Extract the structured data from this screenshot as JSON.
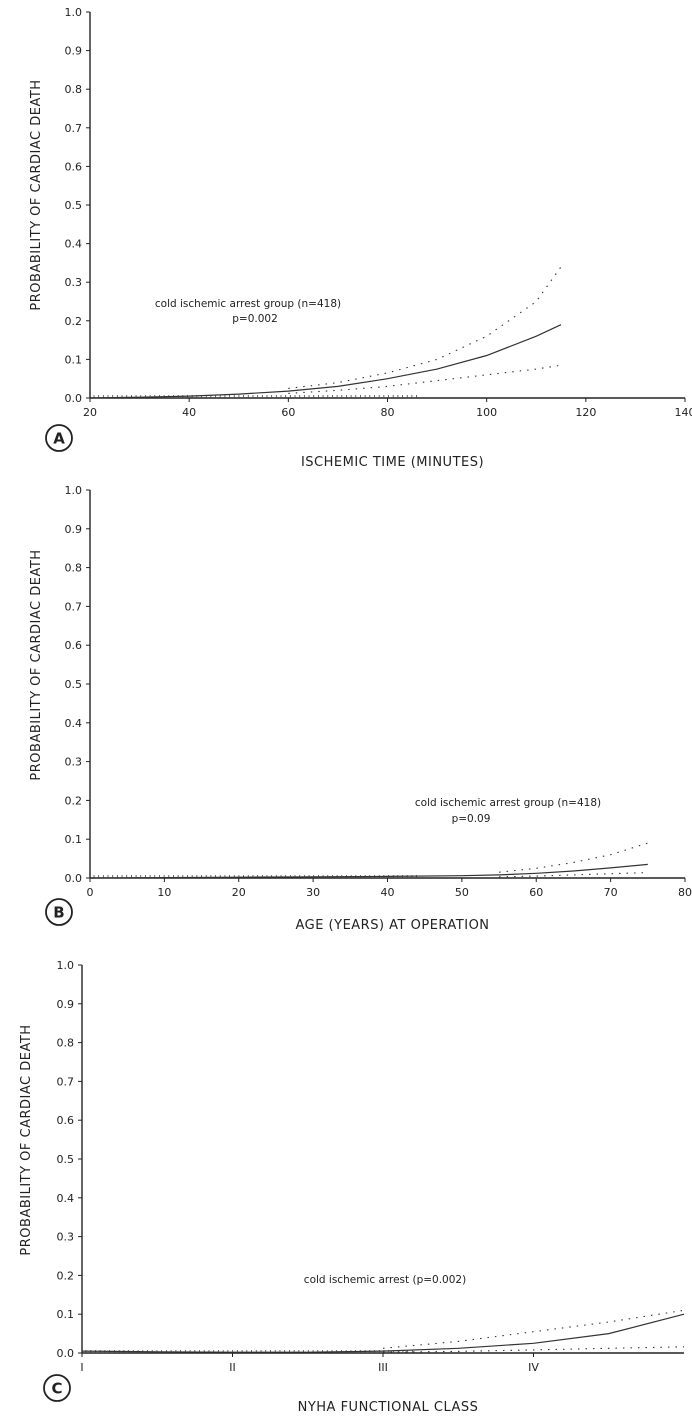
{
  "chart_data": [
    {
      "type": "line",
      "panel_label": "A",
      "xlabel": "ISCHEMIC TIME (MINUTES)",
      "ylabel": "PROBABILITY OF CARDIAC DEATH",
      "xlim": [
        20,
        140
      ],
      "ylim": [
        0,
        1.0
      ],
      "x_ticks": [
        20,
        40,
        60,
        80,
        100,
        120,
        140
      ],
      "x_tick_labels": [
        "20",
        "40",
        "60",
        "80",
        "100",
        "120",
        "140"
      ],
      "y_ticks": [
        0.0,
        0.1,
        0.2,
        0.3,
        0.4,
        0.5,
        0.6,
        0.7,
        0.8,
        0.9,
        1.0
      ],
      "y_tick_labels": [
        "0.0",
        "0.1",
        "0.2",
        "0.3",
        "0.4",
        "0.5",
        "0.6",
        "0.7",
        "0.8",
        "0.9",
        "1.0"
      ],
      "annotations": [
        "cold ischemic arrest group (n=418)",
        "p=0.002"
      ],
      "series": [
        {
          "style": "solid",
          "x": [
            20,
            30,
            40,
            50,
            60,
            70,
            80,
            90,
            100,
            110,
            115
          ],
          "y": [
            0.0,
            0.002,
            0.005,
            0.01,
            0.018,
            0.03,
            0.05,
            0.075,
            0.11,
            0.16,
            0.19
          ]
        },
        {
          "style": "dotted",
          "x": [
            60,
            70,
            80,
            90,
            100,
            110,
            115
          ],
          "y": [
            0.025,
            0.04,
            0.065,
            0.1,
            0.16,
            0.25,
            0.34
          ]
        },
        {
          "style": "dotted",
          "x": [
            60,
            70,
            80,
            90,
            100,
            110,
            115
          ],
          "y": [
            0.012,
            0.02,
            0.03,
            0.045,
            0.06,
            0.075,
            0.085
          ]
        }
      ]
    },
    {
      "type": "line",
      "panel_label": "B",
      "xlabel": "AGE (YEARS) AT OPERATION",
      "ylabel": "PROBABILITY OF CARDIAC DEATH",
      "xlim": [
        0,
        80
      ],
      "ylim": [
        0,
        1.0
      ],
      "x_ticks": [
        0,
        10,
        20,
        30,
        40,
        50,
        60,
        70,
        80
      ],
      "x_tick_labels": [
        "0",
        "10",
        "20",
        "30",
        "40",
        "50",
        "60",
        "70",
        "80"
      ],
      "y_ticks": [
        0.0,
        0.1,
        0.2,
        0.3,
        0.4,
        0.5,
        0.6,
        0.7,
        0.8,
        0.9,
        1.0
      ],
      "y_tick_labels": [
        "0.0",
        "0.1",
        "0.2",
        "0.3",
        "0.4",
        "0.5",
        "0.6",
        "0.7",
        "0.8",
        "0.9",
        "1.0"
      ],
      "annotations": [
        "cold ischemic arrest group (n=418)",
        "p=0.09"
      ],
      "series": [
        {
          "style": "solid",
          "x": [
            0,
            10,
            20,
            30,
            40,
            50,
            55,
            60,
            65,
            70,
            75
          ],
          "y": [
            0.0,
            0.001,
            0.002,
            0.003,
            0.004,
            0.006,
            0.008,
            0.012,
            0.018,
            0.026,
            0.035
          ]
        },
        {
          "style": "dotted",
          "x": [
            55,
            60,
            65,
            70,
            75
          ],
          "y": [
            0.015,
            0.025,
            0.04,
            0.06,
            0.09
          ]
        },
        {
          "style": "dotted",
          "x": [
            55,
            60,
            65,
            70,
            75
          ],
          "y": [
            0.003,
            0.005,
            0.008,
            0.011,
            0.014
          ]
        }
      ]
    },
    {
      "type": "line",
      "panel_label": "C",
      "xlabel": "NYHA FUNCTIONAL CLASS",
      "ylabel": "PROBABILITY OF CARDIAC DEATH",
      "xlim": [
        1,
        5
      ],
      "ylim": [
        0,
        1.0
      ],
      "x_ticks": [
        1,
        2,
        3,
        4
      ],
      "x_tick_labels": [
        "I",
        "II",
        "III",
        "IV"
      ],
      "y_ticks": [
        0.0,
        0.1,
        0.2,
        0.3,
        0.4,
        0.5,
        0.6,
        0.7,
        0.8,
        0.9,
        1.0
      ],
      "y_tick_labels": [
        "0.0",
        "0.1",
        "0.2",
        "0.3",
        "0.4",
        "0.5",
        "0.6",
        "0.7",
        "0.8",
        "0.9",
        "1.0"
      ],
      "annotations": [
        "cold ischemic arrest (p=0.002)"
      ],
      "series": [
        {
          "style": "solid",
          "x": [
            1,
            1.5,
            2,
            2.5,
            3,
            3.5,
            4,
            4.5,
            5
          ],
          "y": [
            0.005,
            0.003,
            0.002,
            0.002,
            0.005,
            0.012,
            0.025,
            0.05,
            0.1
          ]
        },
        {
          "style": "dotted",
          "x": [
            3,
            3.5,
            4,
            4.5,
            5
          ],
          "y": [
            0.012,
            0.03,
            0.055,
            0.08,
            0.11
          ]
        },
        {
          "style": "dotted",
          "x": [
            3,
            3.5,
            4,
            4.5,
            5
          ],
          "y": [
            0.002,
            0.004,
            0.008,
            0.012,
            0.016
          ]
        }
      ]
    }
  ]
}
